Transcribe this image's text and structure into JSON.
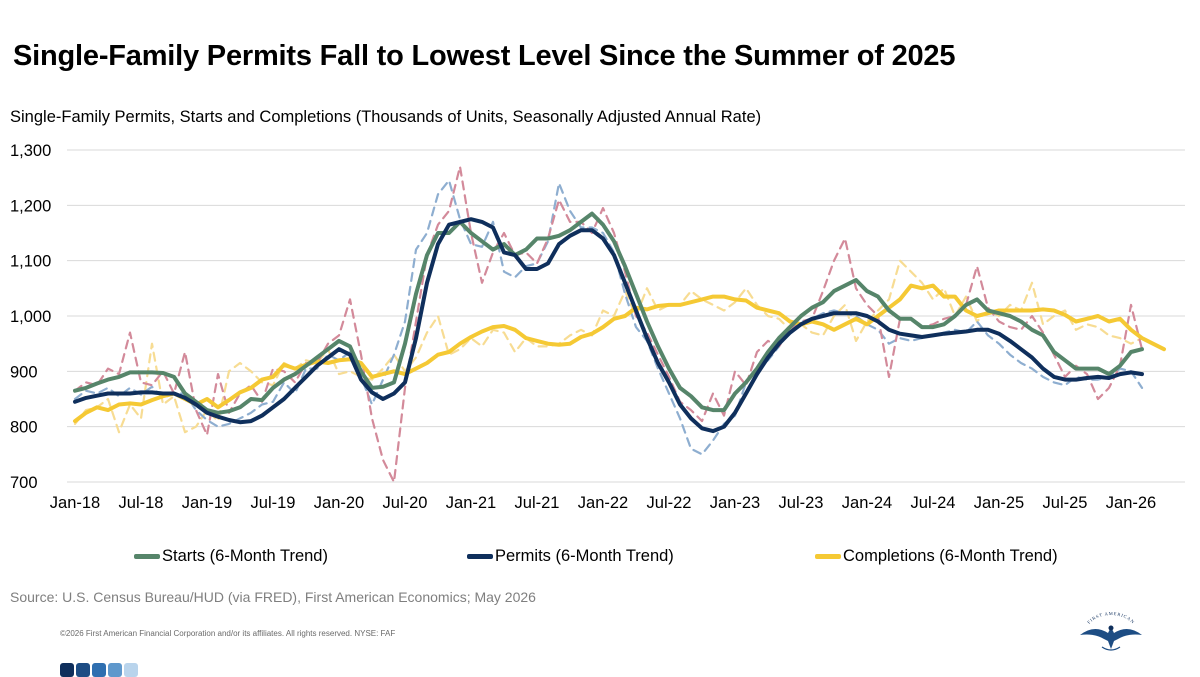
{
  "title": "Single-Family Permits Fall to Lowest Level Since the Summer of 2025",
  "subtitle": "Single-Family Permits, Starts and Completions (Thousands of Units, Seasonally Adjusted Annual Rate)",
  "source": "Source: U.S. Census Bureau/HUD (via FRED), First American Economics; May 2026",
  "copyright": "©2026 First American Financial Corporation and/or its affiliates. All rights reserved. NYSE: FAF",
  "logo_text": "FIRST AMERICAN",
  "colors": {
    "starts": "#56856a",
    "permits": "#0f2f5c",
    "completions": "#f5c934",
    "starts_raw": "#d38a9a",
    "permits_raw": "#8eaed0",
    "completions_raw": "#f7dc93",
    "grid": "#d9d9d9",
    "footer_dots": [
      "#0f2f5c",
      "#1d4d84",
      "#2f6fb0",
      "#5f98cc",
      "#b9d4ec"
    ]
  },
  "legend": [
    {
      "key": "starts",
      "label": "Starts (6-Month Trend)"
    },
    {
      "key": "permits",
      "label": "Permits (6-Month Trend)"
    },
    {
      "key": "completions",
      "label": "Completions (6-Month Trend)"
    }
  ],
  "chart_data": {
    "type": "line",
    "x_start": "2018-01",
    "x_ticks": [
      "Jan-18",
      "Jul-18",
      "Jan-19",
      "Jul-19",
      "Jan-20",
      "Jul-20",
      "Jan-21",
      "Jul-21",
      "Jan-22",
      "Jul-22",
      "Jan-23",
      "Jul-23",
      "Jan-24",
      "Jul-24",
      "Jan-25",
      "Jul-25",
      "Jan-26"
    ],
    "ylim": [
      700,
      1300
    ],
    "y_ticks": [
      700,
      800,
      900,
      1000,
      1100,
      1200,
      1300
    ],
    "y_tick_labels": [
      "700",
      "800",
      "900",
      "1,000",
      "1,100",
      "1,200",
      "1,300"
    ],
    "grid": true,
    "legend_position": "bottom",
    "series": [
      {
        "name": "Starts (6-Month Trend)",
        "key": "starts",
        "style": "solid",
        "values": [
          865,
          870,
          878,
          885,
          890,
          898,
          898,
          898,
          897,
          890,
          860,
          845,
          830,
          825,
          828,
          835,
          850,
          848,
          870,
          885,
          895,
          910,
          925,
          940,
          955,
          945,
          900,
          870,
          872,
          880,
          950,
          1040,
          1110,
          1150,
          1150,
          1170,
          1150,
          1135,
          1120,
          1130,
          1110,
          1120,
          1140,
          1140,
          1145,
          1155,
          1170,
          1185,
          1165,
          1135,
          1090,
          1040,
          990,
          945,
          905,
          870,
          855,
          835,
          830,
          830,
          860,
          880,
          905,
          935,
          960,
          980,
          1000,
          1015,
          1025,
          1045,
          1055,
          1065,
          1045,
          1035,
          1010,
          995,
          995,
          980,
          980,
          985,
          1000,
          1020,
          1030,
          1010,
          1005,
          1000,
          990,
          975,
          965,
          935,
          920,
          905,
          905,
          905,
          895,
          910,
          935,
          940
        ]
      },
      {
        "name": "Permits (6-Month Trend)",
        "key": "permits",
        "style": "solid",
        "values": [
          845,
          852,
          856,
          860,
          860,
          860,
          862,
          862,
          860,
          860,
          852,
          840,
          825,
          818,
          812,
          808,
          810,
          820,
          835,
          850,
          870,
          890,
          910,
          925,
          940,
          930,
          885,
          862,
          850,
          860,
          880,
          960,
          1060,
          1130,
          1165,
          1170,
          1175,
          1170,
          1160,
          1115,
          1110,
          1085,
          1085,
          1095,
          1130,
          1145,
          1155,
          1155,
          1140,
          1110,
          1060,
          1010,
          960,
          915,
          880,
          840,
          815,
          797,
          792,
          800,
          825,
          860,
          895,
          925,
          950,
          970,
          985,
          995,
          1000,
          1005,
          1005,
          1005,
          1000,
          990,
          975,
          968,
          965,
          962,
          965,
          968,
          970,
          972,
          975,
          975,
          968,
          955,
          940,
          925,
          905,
          890,
          885,
          885,
          888,
          890,
          888,
          895,
          898,
          895
        ]
      },
      {
        "name": "Completions (6-Month Trend)",
        "key": "completions",
        "style": "solid",
        "values": [
          810,
          825,
          835,
          830,
          840,
          842,
          840,
          848,
          855,
          860,
          850,
          840,
          850,
          835,
          848,
          862,
          870,
          885,
          890,
          912,
          905,
          912,
          918,
          915,
          920,
          922,
          915,
          890,
          895,
          900,
          895,
          905,
          915,
          930,
          935,
          950,
          962,
          972,
          980,
          982,
          975,
          960,
          955,
          950,
          948,
          950,
          962,
          968,
          980,
          995,
          1000,
          1015,
          1012,
          1018,
          1020,
          1020,
          1025,
          1030,
          1035,
          1035,
          1030,
          1028,
          1015,
          1010,
          1005,
          990,
          985,
          990,
          985,
          975,
          985,
          995,
          985,
          1000,
          1015,
          1030,
          1055,
          1050,
          1055,
          1035,
          1035,
          1010,
          1000,
          1005,
          1010,
          1010,
          1010,
          1010,
          1012,
          1010,
          1002,
          990,
          995,
          1000,
          990,
          995,
          975,
          960,
          950,
          940
        ]
      },
      {
        "name": "",
        "key": "starts_raw",
        "style": "dashed",
        "values": [
          865,
          880,
          875,
          905,
          895,
          970,
          880,
          875,
          900,
          860,
          935,
          830,
          785,
          895,
          825,
          860,
          875,
          845,
          905,
          900,
          880,
          915,
          915,
          950,
          965,
          1030,
          930,
          815,
          740,
          700,
          870,
          990,
          1110,
          1165,
          1190,
          1270,
          1150,
          1060,
          1115,
          1150,
          1110,
          1115,
          1095,
          1140,
          1210,
          1170,
          1170,
          1150,
          1195,
          1150,
          1080,
          1000,
          970,
          930,
          890,
          845,
          830,
          810,
          860,
          820,
          900,
          875,
          935,
          955,
          945,
          975,
          990,
          995,
          1045,
          1100,
          1140,
          1050,
          1020,
          1000,
          890,
          995,
          995,
          980,
          985,
          995,
          1000,
          1020,
          1090,
          1015,
          990,
          980,
          975,
          1000,
          970,
          930,
          890,
          910,
          895,
          850,
          870,
          910,
          1020,
          940
        ]
      },
      {
        "name": "",
        "key": "permits_raw",
        "style": "dashed",
        "values": [
          850,
          865,
          860,
          870,
          855,
          870,
          858,
          872,
          852,
          860,
          860,
          830,
          812,
          800,
          805,
          815,
          825,
          840,
          845,
          880,
          860,
          905,
          905,
          930,
          920,
          935,
          890,
          840,
          885,
          930,
          990,
          1120,
          1150,
          1220,
          1245,
          1175,
          1130,
          1125,
          1170,
          1080,
          1070,
          1090,
          1095,
          1135,
          1240,
          1190,
          1160,
          1160,
          1150,
          1115,
          1040,
          980,
          955,
          905,
          860,
          815,
          760,
          750,
          775,
          805,
          820,
          880,
          905,
          920,
          945,
          980,
          990,
          995,
          1005,
          1010,
          1005,
          1000,
          985,
          975,
          950,
          960,
          955,
          960,
          965,
          970,
          975,
          970,
          990,
          965,
          950,
          930,
          915,
          905,
          890,
          880,
          875,
          890,
          885,
          885,
          890,
          905,
          900,
          870
        ]
      },
      {
        "name": "",
        "key": "completions_raw",
        "style": "dashed",
        "values": [
          805,
          830,
          835,
          850,
          790,
          840,
          815,
          950,
          840,
          855,
          790,
          800,
          830,
          810,
          900,
          915,
          900,
          880,
          875,
          915,
          905,
          920,
          915,
          940,
          895,
          900,
          890,
          885,
          905,
          930,
          900,
          925,
          970,
          1000,
          930,
          940,
          960,
          945,
          975,
          970,
          935,
          960,
          945,
          945,
          950,
          965,
          975,
          965,
          1010,
          1000,
          1045,
          1000,
          1050,
          1010,
          1020,
          1020,
          1045,
          1030,
          1020,
          1010,
          1025,
          1050,
          1020,
          1000,
          995,
          975,
          985,
          970,
          965,
          1000,
          1020,
          955,
          990,
          1010,
          1030,
          1100,
          1080,
          1060,
          1030,
          1050,
          1000,
          1035,
          990,
          1010,
          1000,
          1020,
          1010,
          1060,
          985,
          1000,
          1010,
          975,
          985,
          980,
          965,
          960,
          950,
          960
        ]
      }
    ]
  }
}
